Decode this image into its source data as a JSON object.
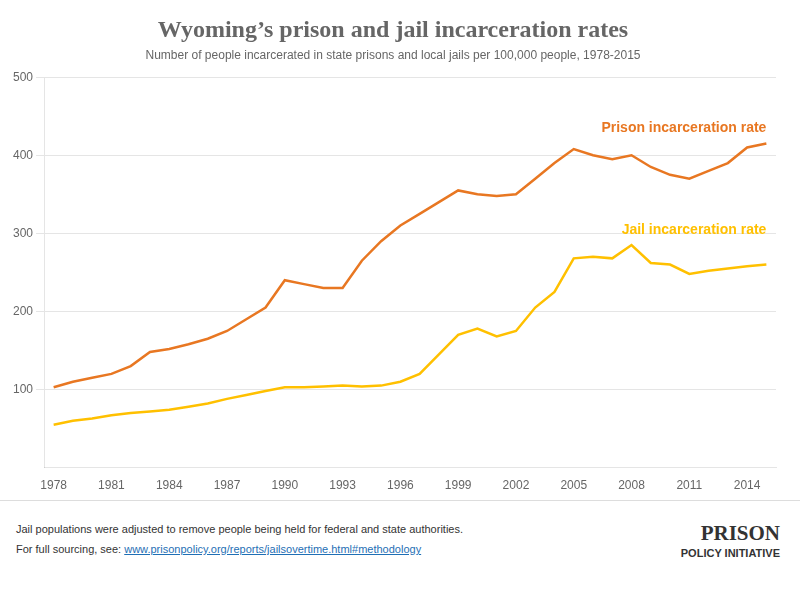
{
  "chart_data": {
    "type": "line",
    "title": "Wyoming’s prison and jail incarceration rates",
    "subtitle": "Number of people incarcerated in state prisons and local jails per 100,000 people, 1978-2015",
    "annotations": [
      "Jail populations were adjusted to remove people being held for federal and state authorities.",
      "For full sourcing, see: ",
      "www.prisonpolicy.org/reports/jailsovertime.html#methodology",
      "PRISON",
      "POLICY INITIATIVE"
    ],
    "x": [
      1978,
      1979,
      1980,
      1981,
      1982,
      1983,
      1984,
      1985,
      1986,
      1987,
      1988,
      1989,
      1990,
      1991,
      1992,
      1993,
      1994,
      1995,
      1996,
      1997,
      1998,
      1999,
      2000,
      2001,
      2002,
      2003,
      2004,
      2005,
      2006,
      2007,
      2008,
      2009,
      2010,
      2011,
      2012,
      2013,
      2014,
      2015
    ],
    "series": [
      {
        "name": "Prison incarceration rate",
        "color": "#e87722",
        "values": [
          103,
          110,
          115,
          120,
          130,
          148,
          152,
          158,
          165,
          175,
          190,
          205,
          240,
          235,
          230,
          230,
          265,
          290,
          310,
          325,
          340,
          355,
          350,
          348,
          350,
          370,
          390,
          408,
          400,
          395,
          400,
          385,
          375,
          370,
          380,
          390,
          410,
          415
        ]
      },
      {
        "name": "Jail incarceration rate",
        "color": "#ffc000",
        "values": [
          55,
          60,
          63,
          67,
          70,
          72,
          74,
          78,
          82,
          88,
          93,
          98,
          103,
          103,
          104,
          105,
          104,
          105,
          110,
          120,
          145,
          170,
          178,
          168,
          175,
          205,
          225,
          268,
          270,
          268,
          285,
          262,
          260,
          248,
          252,
          255,
          258,
          260
        ]
      }
    ],
    "xlim": [
      1977.5,
      2015.5
    ],
    "xticks": [
      1978,
      1981,
      1984,
      1987,
      1990,
      1993,
      1996,
      1999,
      2002,
      2005,
      2008,
      2011,
      2014
    ],
    "ylim": [
      0,
      500
    ],
    "yticks": [
      100,
      200,
      300,
      400,
      500
    ],
    "grid": true
  }
}
